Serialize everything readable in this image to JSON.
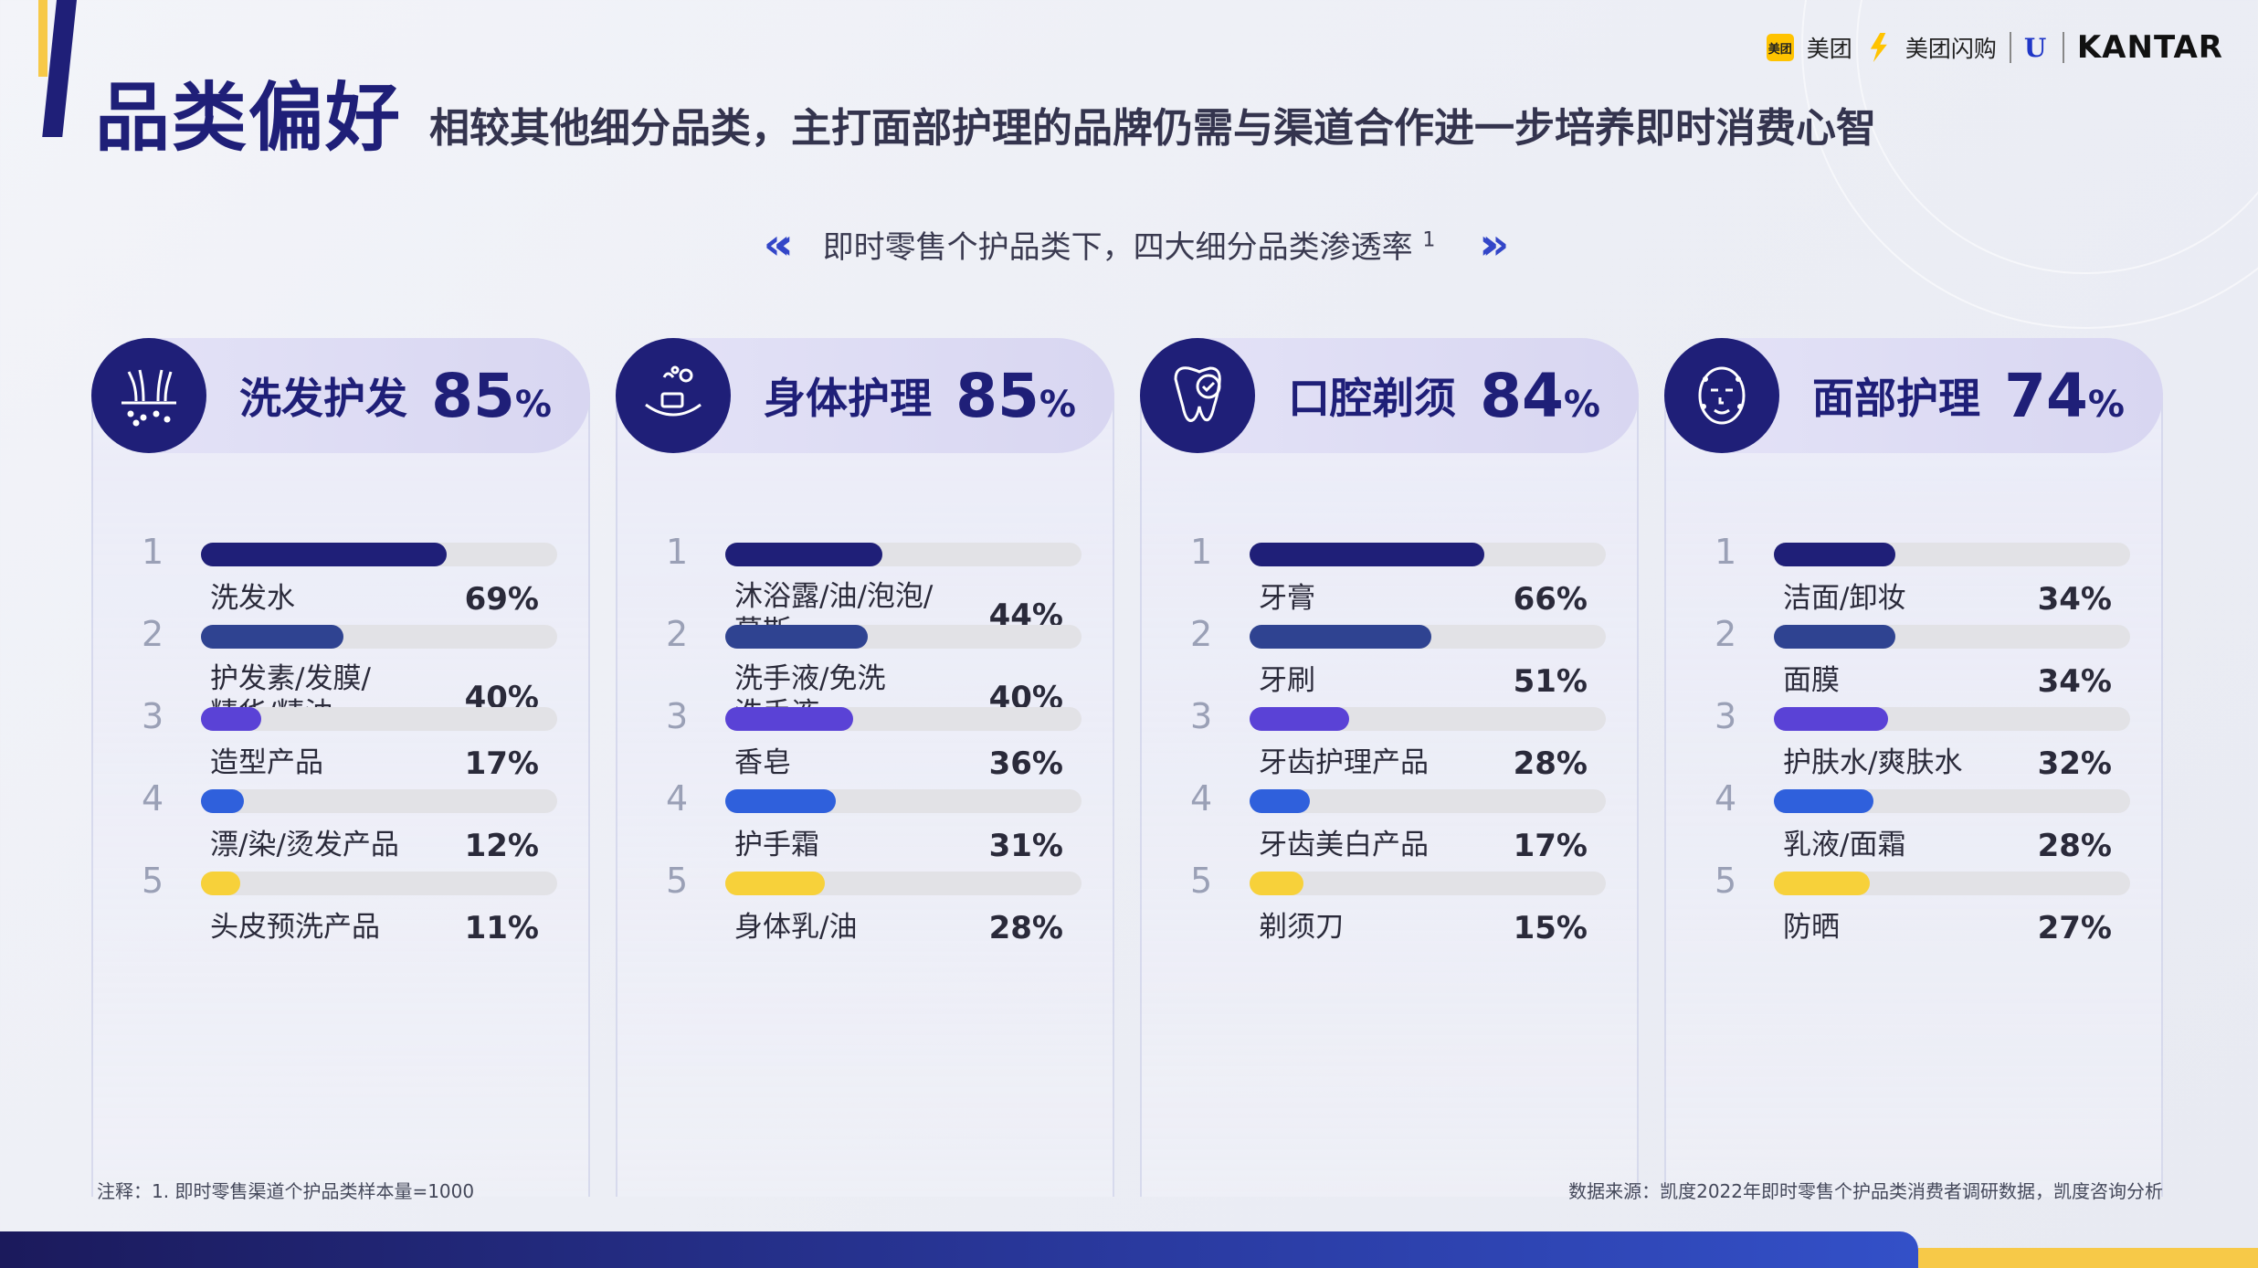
{
  "header": {
    "title": "品类偏好",
    "subtitle": "相较其他细分品类，主打面部护理的品牌仍需与渠道合作进一步培养即时消费心智"
  },
  "logos": {
    "meituan_badge": "美团",
    "meituan": "美团",
    "meituan_flash": "美团闪购",
    "unilever": "U",
    "kantar": "KANTAR"
  },
  "chart_title": "即时零售个护品类下，四大细分品类渗透率",
  "chart_title_sup": "1",
  "chart_data": {
    "type": "bar",
    "title": "即时零售个护品类下，四大细分品类渗透率",
    "value_unit": "%",
    "xlim": [
      0,
      100
    ],
    "rank_colors": [
      "#1f1f78",
      "#2f4391",
      "#5a42d6",
      "#2f60dc",
      "#f7d13a"
    ],
    "categories": [
      {
        "name": "洗发护发",
        "penetration": 85,
        "icon": "hair-follicle-icon",
        "items": [
          {
            "rank": "1",
            "label": "洗发水",
            "value": 69
          },
          {
            "rank": "2",
            "label": "护发素/发膜/精华/精油",
            "label_lines": [
              "护发素/发膜/",
              "精华/精油"
            ],
            "value": 40
          },
          {
            "rank": "3",
            "label": "造型产品",
            "value": 17
          },
          {
            "rank": "4",
            "label": "漂/染/烫发产品",
            "value": 12
          },
          {
            "rank": "5",
            "label": "头皮预洗产品",
            "value": 11
          }
        ]
      },
      {
        "name": "身体护理",
        "penetration": 85,
        "icon": "soap-dish-icon",
        "items": [
          {
            "rank": "1",
            "label": "沐浴露/油/泡泡/慕斯",
            "label_lines": [
              "沐浴露/油/泡泡/",
              "慕斯"
            ],
            "value": 44
          },
          {
            "rank": "2",
            "label": "洗手液/免洗洗手液",
            "label_lines": [
              "洗手液/免洗",
              "洗手液"
            ],
            "value": 40
          },
          {
            "rank": "3",
            "label": "香皂",
            "value": 36
          },
          {
            "rank": "4",
            "label": "护手霜",
            "value": 31
          },
          {
            "rank": "5",
            "label": "身体乳/油",
            "value": 28
          }
        ]
      },
      {
        "name": "口腔剃须",
        "penetration": 84,
        "icon": "tooth-check-icon",
        "items": [
          {
            "rank": "1",
            "label": "牙膏",
            "value": 66
          },
          {
            "rank": "2",
            "label": "牙刷",
            "value": 51
          },
          {
            "rank": "3",
            "label": "牙齿护理产品",
            "value": 28
          },
          {
            "rank": "4",
            "label": "牙齿美白产品",
            "value": 17
          },
          {
            "rank": "5",
            "label": "剃须刀",
            "value": 15
          }
        ]
      },
      {
        "name": "面部护理",
        "penetration": 74,
        "icon": "face-mask-icon",
        "items": [
          {
            "rank": "1",
            "label": "洁面/卸妆",
            "value": 34
          },
          {
            "rank": "2",
            "label": "面膜",
            "value": 34
          },
          {
            "rank": "3",
            "label": "护肤水/爽肤水",
            "value": 32
          },
          {
            "rank": "4",
            "label": "乳液/面霜",
            "value": 28
          },
          {
            "rank": "5",
            "label": "防晒",
            "value": 27
          }
        ]
      }
    ]
  },
  "footer": {
    "note": "注释：1. 即时零售渠道个护品类样本量=1000",
    "source": "数据来源：凯度2022年即时零售个护品类消费者调研数据，凯度咨询分析"
  }
}
